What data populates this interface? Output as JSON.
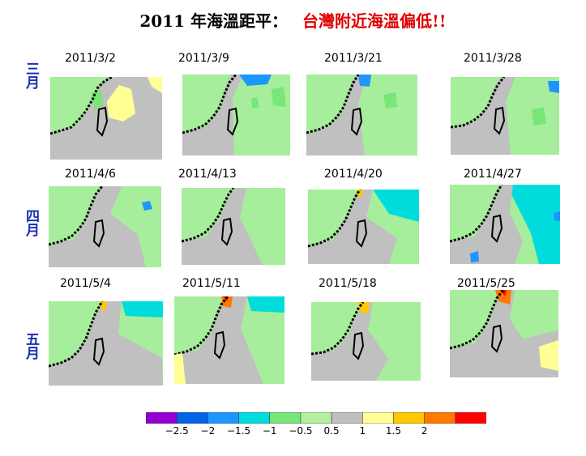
{
  "title": {
    "main": "2011 年海溫距平：",
    "sub": "台灣附近海溫偏低!!"
  },
  "months": [
    "三月",
    "四月",
    "五月"
  ],
  "dates": [
    [
      "2011/3/2",
      "2011/3/9",
      "2011/3/21",
      "2011/3/28"
    ],
    [
      "2011/4/6",
      "2011/4/13",
      "2011/4/20",
      "2011/4/27"
    ],
    [
      "2011/5/4",
      "2011/5/11",
      "2011/5/18",
      "2011/5/25"
    ]
  ],
  "colorbar": {
    "ticks": [
      "−2.5",
      "−2",
      "−1.5",
      "−1",
      "−0.5",
      "0.5",
      "1",
      "1.5",
      "2"
    ],
    "colors": [
      "#9400d3",
      "#0064e6",
      "#1e96ff",
      "#00dcdc",
      "#78e678",
      "#b4f0a0",
      "#c0c0c0",
      "#ffff96",
      "#ffc800",
      "#ff7800",
      "#ff0000"
    ]
  }
}
